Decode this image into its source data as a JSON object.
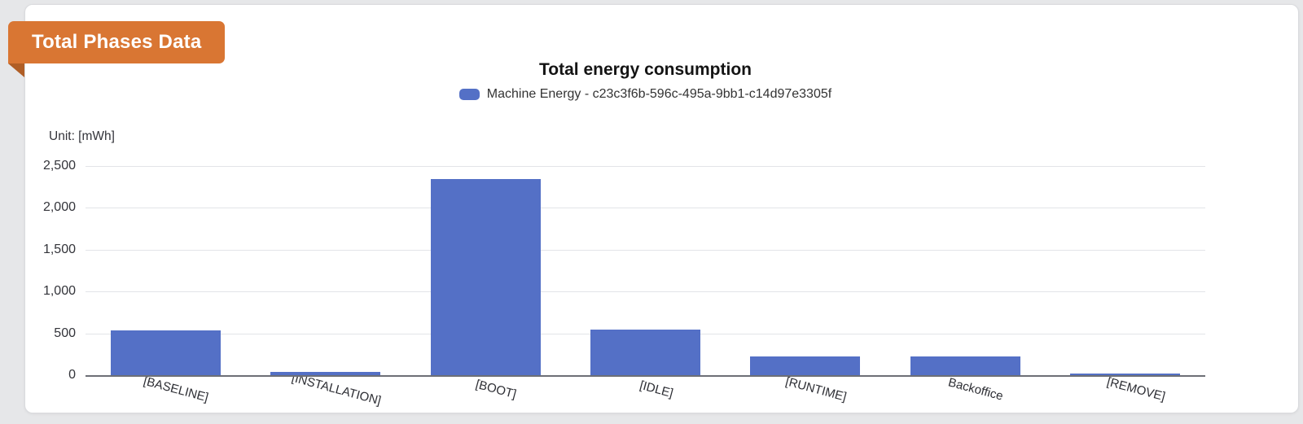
{
  "page": {
    "background": "#e6e7e9"
  },
  "badge": {
    "label": "Total Phases Data",
    "bg_color": "#d97633",
    "fold_color": "#b05e26"
  },
  "chart": {
    "title": "Total energy consumption",
    "unit_label": "Unit: [mWh]",
    "legend": {
      "label": "Machine Energy - c23c3f6b-596c-495a-9bb1-c14d97e3305f",
      "color": "#5470c6"
    }
  },
  "chart_data": {
    "type": "bar",
    "title": "Total energy consumption",
    "ylabel": "Unit: [mWh]",
    "series_name": "Machine Energy - c23c3f6b-596c-495a-9bb1-c14d97e3305f",
    "bar_color": "#5470c6",
    "categories": [
      "[BASELINE]",
      "[INSTALLATION]",
      "[BOOT]",
      "[IDLE]",
      "[RUNTIME]",
      "Backoffice",
      "[REMOVE]"
    ],
    "values": [
      545,
      45,
      2350,
      550,
      230,
      230,
      10
    ],
    "ylim": [
      0,
      2500
    ],
    "yticks": [
      0,
      500,
      1000,
      1500,
      2000,
      2500
    ],
    "grid": true,
    "legend_position": "top"
  }
}
